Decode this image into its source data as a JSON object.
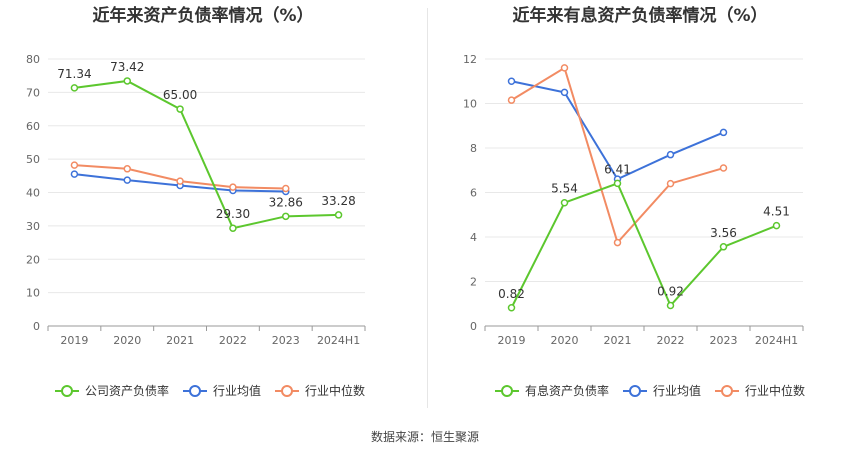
{
  "source_label": "数据来源：恒生聚源",
  "colors": {
    "company": "#5cc72e",
    "industry_avg": "#3d72d9",
    "industry_median": "#f28b63"
  },
  "chart_data": [
    {
      "type": "line",
      "title": "近年来资产负债率情况（%）",
      "xlabel": "",
      "ylabel": "",
      "x": [
        "2019",
        "2020",
        "2021",
        "2022",
        "2023",
        "2024H1"
      ],
      "ylim": [
        0,
        80
      ],
      "yticks": [
        0,
        10,
        20,
        30,
        40,
        50,
        60,
        70,
        80
      ],
      "grid": true,
      "legend_position": "bottom",
      "series": [
        {
          "name": "公司资产负债率",
          "color_key": "company",
          "labeled": true,
          "values": [
            71.34,
            73.42,
            65.0,
            29.3,
            32.86,
            33.28
          ],
          "labels": [
            "71.34",
            "73.42",
            "65.00",
            "29.30",
            "32.86",
            "33.28"
          ]
        },
        {
          "name": "行业均值",
          "color_key": "industry_avg",
          "labeled": false,
          "values": [
            45.5,
            43.7,
            42.1,
            40.6,
            40.3,
            null
          ]
        },
        {
          "name": "行业中位数",
          "color_key": "industry_median",
          "labeled": false,
          "values": [
            48.2,
            47.1,
            43.4,
            41.6,
            41.2,
            null
          ]
        }
      ]
    },
    {
      "type": "line",
      "title": "近年来有息资产负债率情况（%）",
      "xlabel": "",
      "ylabel": "",
      "x": [
        "2019",
        "2020",
        "2021",
        "2022",
        "2023",
        "2024H1"
      ],
      "ylim": [
        0,
        12
      ],
      "yticks": [
        0,
        2,
        4,
        6,
        8,
        10,
        12
      ],
      "grid": true,
      "legend_position": "bottom",
      "series": [
        {
          "name": "有息资产负债率",
          "color_key": "company",
          "labeled": true,
          "values": [
            0.82,
            5.54,
            6.41,
            0.92,
            3.56,
            4.51
          ],
          "labels": [
            "0.82",
            "5.54",
            "6.41",
            "0.92",
            "3.56",
            "4.51"
          ]
        },
        {
          "name": "行业均值",
          "color_key": "industry_avg",
          "labeled": false,
          "values": [
            11.0,
            10.5,
            6.6,
            7.7,
            8.7,
            null
          ]
        },
        {
          "name": "行业中位数",
          "color_key": "industry_median",
          "labeled": false,
          "values": [
            10.15,
            11.6,
            3.75,
            6.4,
            7.1,
            null
          ]
        }
      ]
    }
  ]
}
